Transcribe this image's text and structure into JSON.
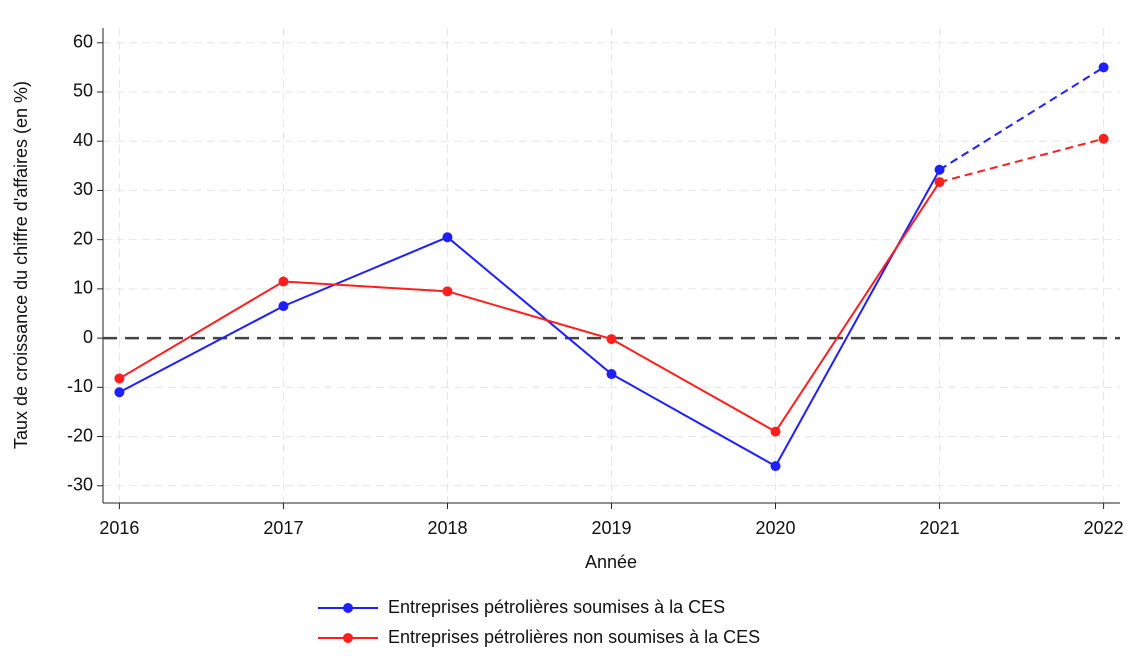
{
  "chart_data": {
    "type": "line",
    "x_label": "Année",
    "y_label": "Taux de croissance du chiffre d'affaires (en %)",
    "x": [
      2016,
      2017,
      2018,
      2019,
      2020,
      2021,
      2022
    ],
    "series": [
      {
        "name": "Entreprises pétrolières soumises à la CES",
        "color": "#1f1fff",
        "values": [
          -11,
          6.5,
          20.5,
          -7.3,
          -26,
          34.2,
          55
        ],
        "dashed_from_x": 2021
      },
      {
        "name": "Entreprises pétrolières non soumises à la CES",
        "color": "#ff1f1f",
        "values": [
          -8.2,
          11.5,
          9.5,
          -0.2,
          -19,
          31.7,
          40.5
        ],
        "dashed_from_x": 2021
      }
    ],
    "xlim": [
      2015.9,
      2022.1
    ],
    "xticks": [
      2016,
      2017,
      2018,
      2019,
      2020,
      2021,
      2022
    ],
    "ylim": [
      -33.5,
      63
    ],
    "yticks": [
      -30,
      -20,
      -10,
      0,
      10,
      20,
      30,
      40,
      50,
      60
    ],
    "grid": true,
    "reference_line": 0,
    "legend": "bottom"
  }
}
